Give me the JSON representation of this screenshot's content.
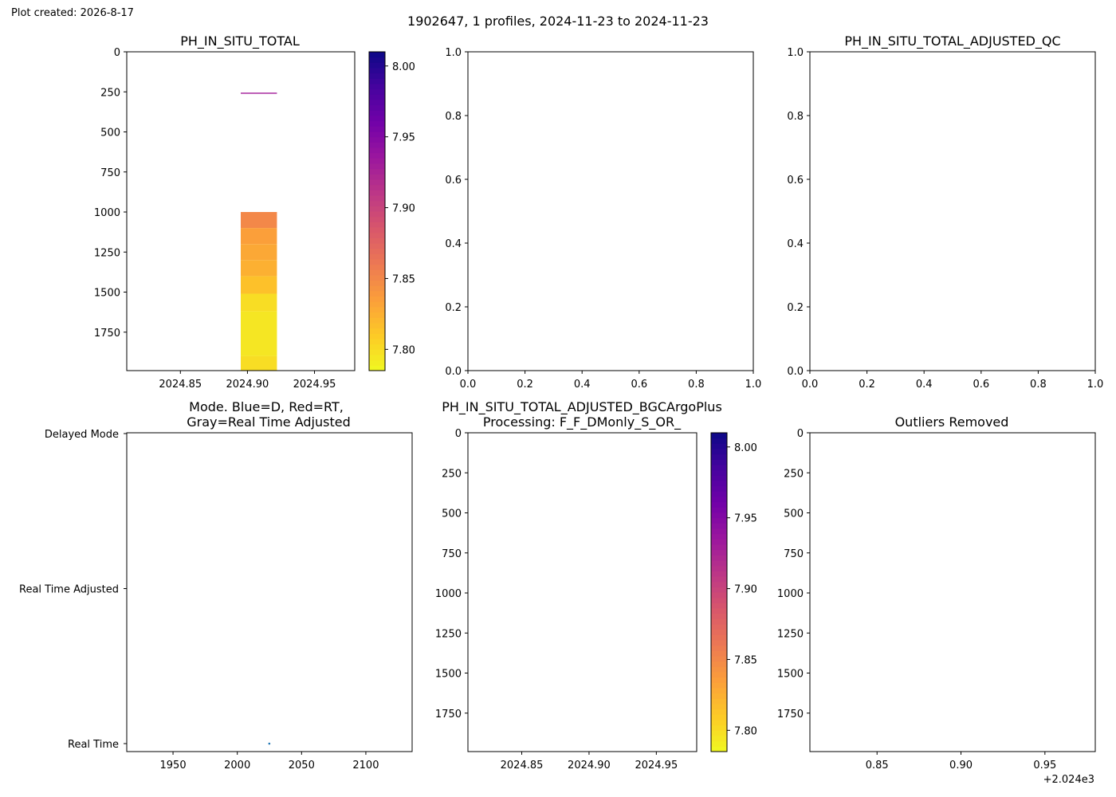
{
  "created": "Plot created: 2026-8-17",
  "suptitle": "1902647, 1 profiles, 2024-11-23 to 2024-11-23",
  "colors": {
    "mode_point": "#1f77b4",
    "colormap": [
      "#f0f921",
      "#fdca26",
      "#fb9f3a",
      "#ed7953",
      "#d8576b",
      "#bd3786",
      "#9c179e",
      "#7201a8",
      "#46039f",
      "#0d0887"
    ]
  },
  "chart_data": [
    {
      "id": "ph_in_situ_total",
      "type": "heatmap",
      "title": "PH_IN_SITU_TOTAL",
      "xlim": [
        2024.81,
        2024.98
      ],
      "ylim": [
        1990,
        0
      ],
      "xticks": [
        "2024.85",
        "2024.90",
        "2024.95"
      ],
      "yticks": [
        "0",
        "250",
        "500",
        "750",
        "1000",
        "1250",
        "1500",
        "1750"
      ],
      "x_range": [
        2024.895,
        2024.922
      ],
      "cells": [
        {
          "depth": [
            255,
            262
          ],
          "ph": 7.93
        },
        {
          "depth": [
            1000,
            1100
          ],
          "ph": 7.85
        },
        {
          "depth": [
            1100,
            1200
          ],
          "ph": 7.835
        },
        {
          "depth": [
            1200,
            1300
          ],
          "ph": 7.83
        },
        {
          "depth": [
            1300,
            1400
          ],
          "ph": 7.825
        },
        {
          "depth": [
            1400,
            1510
          ],
          "ph": 7.815
        },
        {
          "depth": [
            1510,
            1620
          ],
          "ph": 7.8
        },
        {
          "depth": [
            1620,
            1900
          ],
          "ph": 7.795
        },
        {
          "depth": [
            1900,
            1990
          ],
          "ph": 7.8
        }
      ],
      "colorbar": {
        "range": [
          7.785,
          8.01
        ],
        "ticks": [
          "7.80",
          "7.85",
          "7.90",
          "7.95",
          "8.00"
        ]
      }
    },
    {
      "id": "empty_top_middle",
      "type": "scatter",
      "title": "",
      "xlim": [
        0,
        1
      ],
      "ylim": [
        0,
        1
      ],
      "xticks": [
        "0.0",
        "0.2",
        "0.4",
        "0.6",
        "0.8",
        "1.0"
      ],
      "yticks": [
        "0.0",
        "0.2",
        "0.4",
        "0.6",
        "0.8",
        "1.0"
      ]
    },
    {
      "id": "ph_adjusted_qc",
      "type": "scatter",
      "title": "PH_IN_SITU_TOTAL_ADJUSTED_QC",
      "xlim": [
        0,
        1
      ],
      "ylim": [
        0,
        1
      ],
      "xticks": [
        "0.0",
        "0.2",
        "0.4",
        "0.6",
        "0.8",
        "1.0"
      ],
      "yticks": [
        "0.0",
        "0.2",
        "0.4",
        "0.6",
        "0.8",
        "1.0"
      ]
    },
    {
      "id": "mode",
      "type": "scatter",
      "title_lines": [
        "Mode. Blue=D, Red=RT,",
        "Gray=Real Time Adjusted"
      ],
      "xlim": [
        1914,
        2136
      ],
      "xticks": [
        "1950",
        "2000",
        "2050",
        "2100"
      ],
      "ycategories": [
        "Real Time",
        "Real Time Adjusted",
        "Delayed Mode"
      ],
      "points": [
        {
          "x": 2024.9,
          "y": "Real Time"
        }
      ]
    },
    {
      "id": "ph_adjusted_bgc",
      "type": "heatmap",
      "title_lines": [
        "PH_IN_SITU_TOTAL_ADJUSTED_BGCArgoPlus",
        "Processing: F_F_DMonly_S_OR_"
      ],
      "xlim": [
        2024.81,
        2024.98
      ],
      "ylim": [
        1990,
        0
      ],
      "xticks": [
        "2024.85",
        "2024.90",
        "2024.95"
      ],
      "yticks": [
        "0",
        "250",
        "500",
        "750",
        "1000",
        "1250",
        "1500",
        "1750"
      ],
      "cells": [],
      "colorbar": {
        "range": [
          7.785,
          8.01
        ],
        "ticks": [
          "7.80",
          "7.85",
          "7.90",
          "7.95",
          "8.00"
        ]
      }
    },
    {
      "id": "outliers_removed",
      "type": "heatmap",
      "title": "Outliers Removed",
      "xlim": [
        0.81,
        0.98
      ],
      "ylim": [
        1990,
        0
      ],
      "xticks": [
        "0.85",
        "0.90",
        "0.95"
      ],
      "yticks": [
        "0",
        "250",
        "500",
        "750",
        "1000",
        "1250",
        "1500",
        "1750"
      ],
      "x_offset_label": "+2.024e3"
    }
  ]
}
